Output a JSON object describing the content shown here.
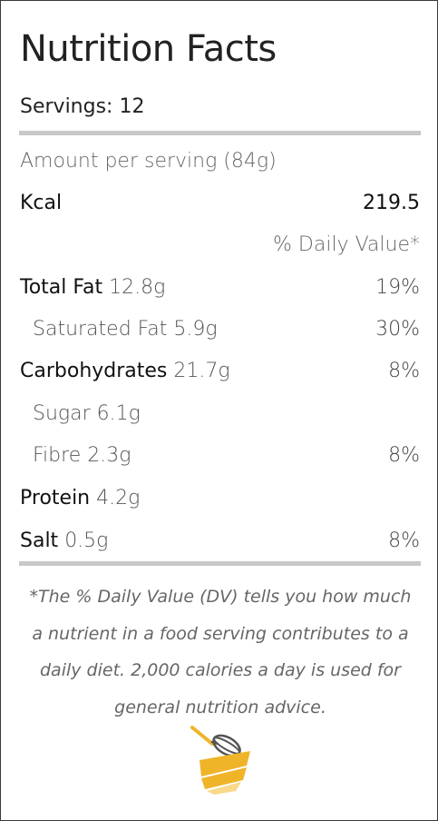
{
  "header": {
    "title": "Nutrition Facts",
    "servings": "Servings: 12"
  },
  "amount_per_serving": "Amount per serving (84g)",
  "energy": {
    "label": "Kcal",
    "value": "219.5"
  },
  "daily_value_header": "% Daily Value*",
  "nutrients": [
    {
      "label": "Total Fat",
      "amount": "12.8g",
      "dv": "19%"
    },
    {
      "label": "Saturated Fat",
      "amount": "5.9g",
      "dv": "30%"
    },
    {
      "label": "Carbohydrates",
      "amount": "21.7g",
      "dv": "8%"
    },
    {
      "label": "Sugar",
      "amount": "6.1g",
      "dv": ""
    },
    {
      "label": "Fibre",
      "amount": "2.3g",
      "dv": "8%"
    },
    {
      "label": "Protein",
      "amount": "4.2g",
      "dv": ""
    },
    {
      "label": "Salt",
      "amount": "0.5g",
      "dv": "8%"
    }
  ],
  "footnote": "*The % Daily Value (DV) tells you how much a nutrient in a food serving contributes to a daily diet. 2,000 calories a day is used for general nutrition advice.",
  "colors": {
    "logo_gold": "#f0b429",
    "logo_light": "#f9d98a",
    "rule": "#c8c8c8"
  },
  "logo_icon": "whisk-bowl-icon"
}
